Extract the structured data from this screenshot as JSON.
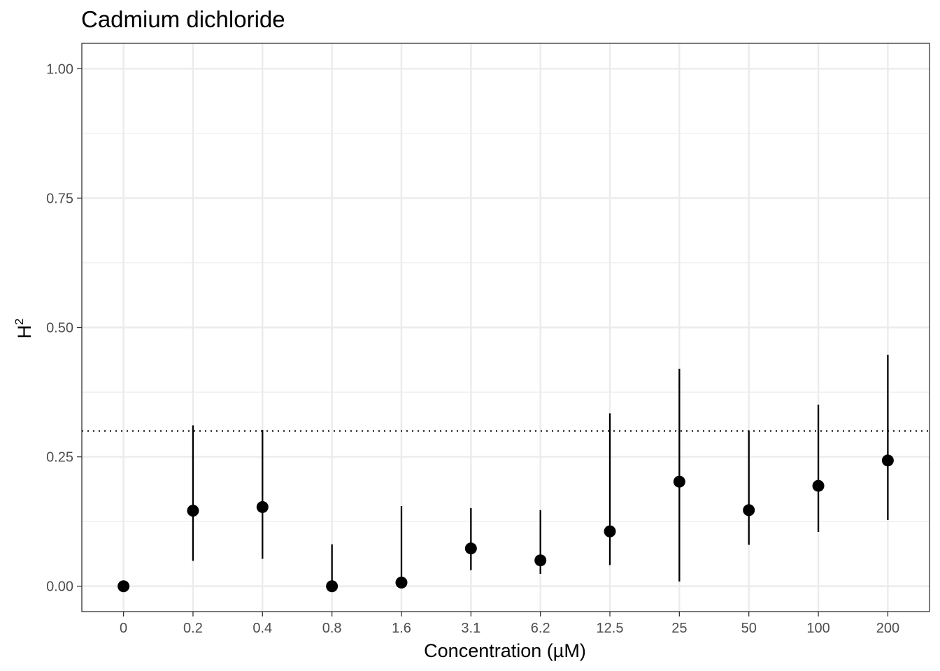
{
  "chart_data": {
    "type": "scatter",
    "title": "Cadmium dichloride",
    "xlabel": "Concentration (µM)",
    "ylabel": "H",
    "ylabel_superscript": "2",
    "categories": [
      "0",
      "0.2",
      "0.4",
      "0.8",
      "1.6",
      "3.1",
      "6.2",
      "12.5",
      "25",
      "50",
      "100",
      "200"
    ],
    "series": [
      {
        "values": [
          0.0,
          0.146,
          0.153,
          0.0,
          0.007,
          0.073,
          0.05,
          0.106,
          0.202,
          0.147,
          0.194,
          0.243
        ],
        "lower": [
          0.0,
          0.049,
          0.053,
          0.0,
          0.0,
          0.031,
          0.024,
          0.041,
          0.009,
          0.08,
          0.105,
          0.128
        ],
        "upper": [
          0.0,
          0.311,
          0.302,
          0.081,
          0.155,
          0.151,
          0.147,
          0.334,
          0.42,
          0.301,
          0.351,
          0.447
        ]
      }
    ],
    "reference_line": {
      "y": 0.3,
      "style": "dotted"
    },
    "ylim": [
      -0.049,
      1.049
    ],
    "yticks": [
      0.0,
      0.25,
      0.5,
      0.75,
      1.0
    ],
    "ytick_labels": [
      "0.00",
      "0.25",
      "0.50",
      "0.75",
      "1.00"
    ],
    "grid": true,
    "colors": {
      "points": "#000000",
      "grid": "#ebebeb",
      "panel_border": "#333333",
      "tick_text": "#4d4d4d"
    }
  }
}
